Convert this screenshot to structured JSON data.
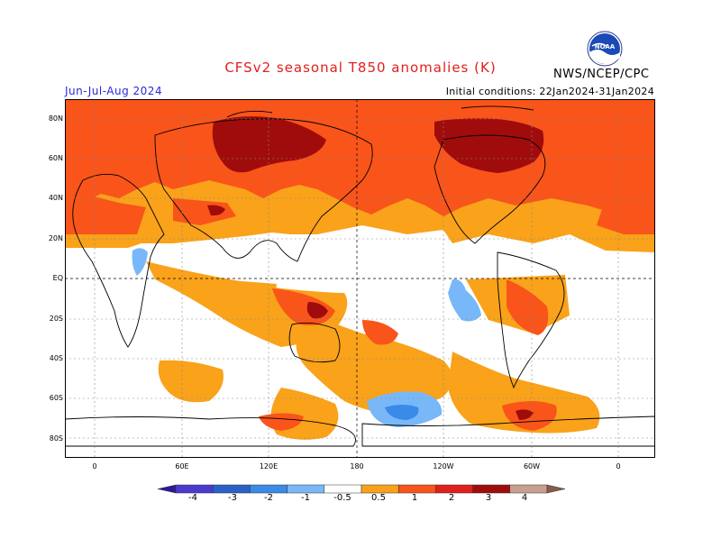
{
  "title": "CFSv2 seasonal T850 anomalies (K)",
  "season": "Jun-Jul-Aug 2024",
  "initial_conditions": "Initial conditions: 22Jan2024-31Jan2024",
  "agency": "NWS/NCEP/CPC",
  "logo_text": "NOAA",
  "latitude_labels": [
    "80N",
    "60N",
    "40N",
    "20N",
    "EQ",
    "20S",
    "40S",
    "60S",
    "80S"
  ],
  "longitude_labels": [
    "0",
    "60E",
    "120E",
    "180",
    "120W",
    "60W",
    "0"
  ],
  "colorbar": {
    "ticks": [
      "-4",
      "-3",
      "-2",
      "-1",
      "-0.5",
      "0.5",
      "1",
      "2",
      "3",
      "4"
    ],
    "colors": [
      "#2a1a9a",
      "#4a3ad0",
      "#2a60c8",
      "#3a8ae8",
      "#78b8f8",
      "#ffffff",
      "#f9a21a",
      "#f9541a",
      "#e0201c",
      "#a00c0c",
      "#c8a090",
      "#8a5a4a"
    ]
  }
}
